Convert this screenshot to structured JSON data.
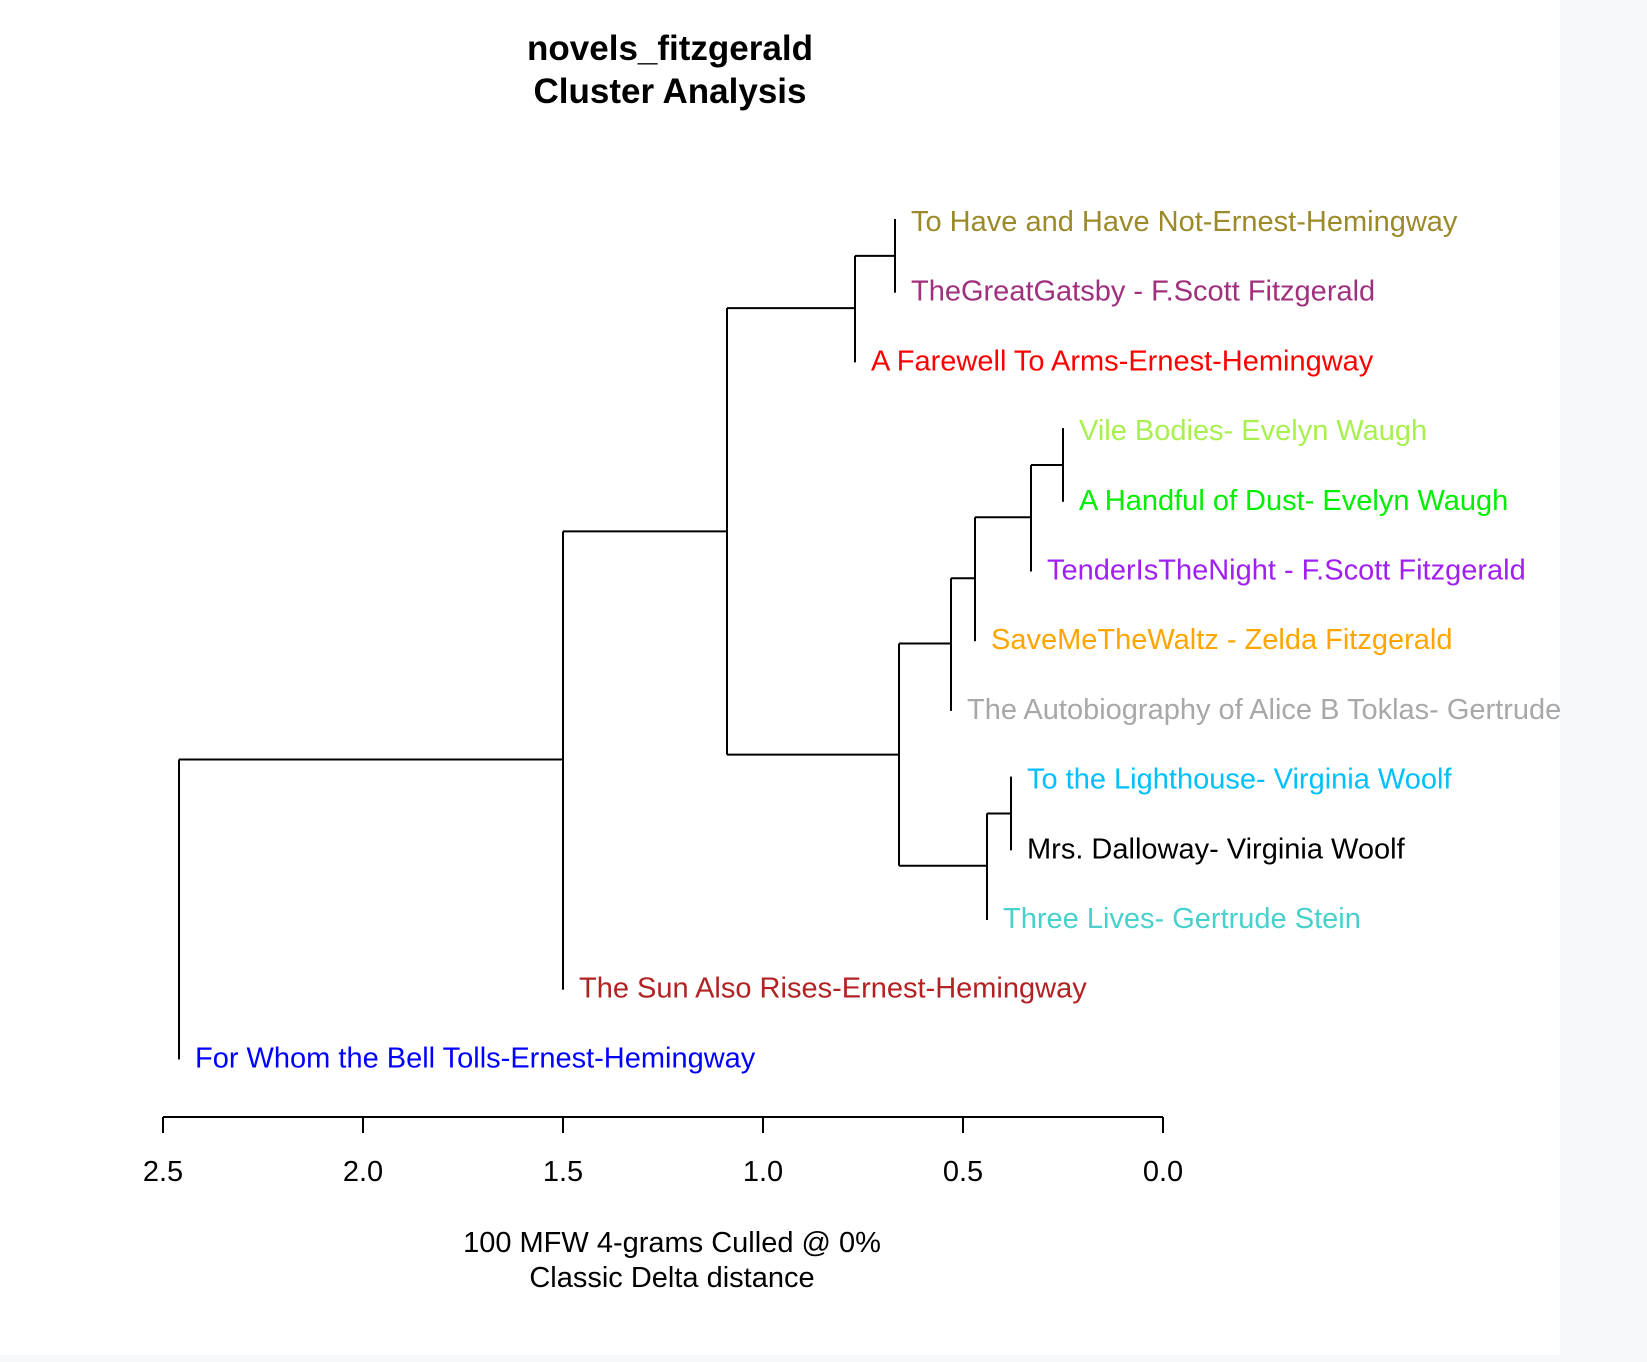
{
  "chart_data": {
    "type": "dendrogram",
    "title": "novels_fitzgerald",
    "subtitle": "Cluster Analysis",
    "xlabel": "100 MFW 4-grams Culled @ 0%",
    "xlabel2": "Classic Delta distance",
    "xlim": [
      2.5,
      0.0
    ],
    "xticks": [
      "2.5",
      "2.0",
      "1.5",
      "1.0",
      "0.5",
      "0.0"
    ],
    "leaves": [
      {
        "label": "To Have and Have Not-Ernest-Hemingway",
        "color": "#9c8a2a"
      },
      {
        "label": "TheGreatGatsby - F.Scott Fitzgerald",
        "color": "#a0307e"
      },
      {
        "label": "A Farewell To Arms-Ernest-Hemingway",
        "color": "#ff0000"
      },
      {
        "label": "Vile Bodies- Evelyn Waugh",
        "color": "#a8f050"
      },
      {
        "label": "A Handful of Dust- Evelyn Waugh",
        "color": "#00ee00"
      },
      {
        "label": "TenderIsTheNight - F.Scott Fitzgerald",
        "color": "#a020f0"
      },
      {
        "label": "SaveMeTheWaltz - Zelda Fitzgerald",
        "color": "#ffa500"
      },
      {
        "label": "The Autobiography of Alice B Toklas- Gertrude Stein",
        "color": "#a8a8a8"
      },
      {
        "label": "To the Lighthouse- Virginia Woolf",
        "color": "#00bfff"
      },
      {
        "label": "Mrs. Dalloway- Virginia Woolf",
        "color": "#000000"
      },
      {
        "label": "Three Lives- Gertrude Stein",
        "color": "#48d1cc"
      },
      {
        "label": "The Sun Also Rises-Ernest-Hemingway",
        "color": "#b22222"
      },
      {
        "label": "For Whom the Bell Tolls-Ernest-Hemingway",
        "color": "#0000ff"
      }
    ],
    "leaf_heights": [
      0.67,
      0.67,
      0.77,
      0.25,
      0.25,
      0.33,
      0.47,
      0.53,
      0.38,
      0.38,
      0.44,
      1.5,
      2.46
    ],
    "merges": [
      {
        "left": "L0",
        "right": "L1",
        "height": 0.67
      },
      {
        "left": "M0",
        "right": "L2",
        "height": 0.77
      },
      {
        "left": "L3",
        "right": "L4",
        "height": 0.25
      },
      {
        "left": "M2",
        "right": "L5",
        "height": 0.33
      },
      {
        "left": "M3",
        "right": "L6",
        "height": 0.47
      },
      {
        "left": "M4",
        "right": "L7",
        "height": 0.53
      },
      {
        "left": "L8",
        "right": "L9",
        "height": 0.38
      },
      {
        "left": "M6",
        "right": "L10",
        "height": 0.44
      },
      {
        "left": "M5",
        "right": "M7",
        "height": 0.66
      },
      {
        "left": "M1",
        "right": "M8",
        "height": 1.09
      },
      {
        "left": "M9",
        "right": "L11",
        "height": 1.5
      },
      {
        "left": "M10",
        "right": "L12",
        "height": 2.46
      }
    ]
  }
}
